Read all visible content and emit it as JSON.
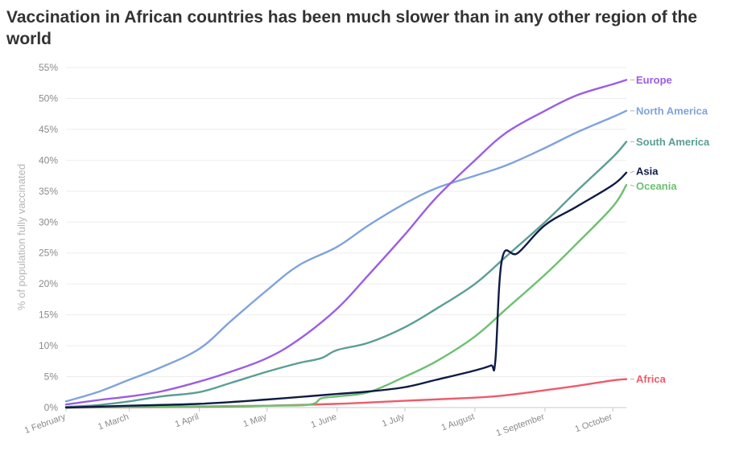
{
  "title": "Vaccination in African countries has been much slower than in any other region of the world",
  "chart_data": {
    "type": "line",
    "title": "Vaccination in African countries has been much slower than in any other region of the world",
    "xlabel": "",
    "ylabel": "% of population fully vaccinated",
    "x_axis": {
      "start": "2021-02-01",
      "end": "2021-10-07",
      "ticks": [
        {
          "date": "2021-02-01",
          "label": "1 February"
        },
        {
          "date": "2021-03-01",
          "label": "1 March"
        },
        {
          "date": "2021-04-01",
          "label": "1 April"
        },
        {
          "date": "2021-05-01",
          "label": "1 May"
        },
        {
          "date": "2021-06-01",
          "label": "1 June"
        },
        {
          "date": "2021-07-01",
          "label": "1 July"
        },
        {
          "date": "2021-08-01",
          "label": "1 August"
        },
        {
          "date": "2021-09-01",
          "label": "1 September"
        },
        {
          "date": "2021-10-01",
          "label": "1 October"
        }
      ]
    },
    "y_axis": {
      "min": 0,
      "max": 55,
      "ticks": [
        0,
        5,
        10,
        15,
        20,
        25,
        30,
        35,
        40,
        45,
        50,
        55
      ],
      "tick_labels": [
        "0%",
        "5%",
        "10%",
        "15%",
        "20%",
        "25%",
        "30%",
        "35%",
        "40%",
        "45%",
        "50%",
        "55%"
      ]
    },
    "grid": true,
    "series": [
      {
        "name": "Europe",
        "color": "#9b5de5",
        "points": [
          [
            "2021-02-01",
            0.5
          ],
          [
            "2021-02-15",
            1.2
          ],
          [
            "2021-03-01",
            1.8
          ],
          [
            "2021-03-15",
            2.6
          ],
          [
            "2021-04-01",
            4.2
          ],
          [
            "2021-04-15",
            5.8
          ],
          [
            "2021-05-01",
            8.0
          ],
          [
            "2021-05-15",
            11.0
          ],
          [
            "2021-06-01",
            16.0
          ],
          [
            "2021-06-15",
            21.5
          ],
          [
            "2021-07-01",
            28.0
          ],
          [
            "2021-07-15",
            34.0
          ],
          [
            "2021-08-01",
            40.0
          ],
          [
            "2021-08-15",
            44.5
          ],
          [
            "2021-09-01",
            48.0
          ],
          [
            "2021-09-15",
            50.5
          ],
          [
            "2021-10-01",
            52.3
          ],
          [
            "2021-10-07",
            53.0
          ]
        ]
      },
      {
        "name": "North America",
        "color": "#7fa3dd",
        "points": [
          [
            "2021-02-01",
            1.0
          ],
          [
            "2021-02-15",
            2.5
          ],
          [
            "2021-03-01",
            4.5
          ],
          [
            "2021-03-15",
            6.5
          ],
          [
            "2021-04-01",
            9.5
          ],
          [
            "2021-04-15",
            14.0
          ],
          [
            "2021-05-01",
            19.0
          ],
          [
            "2021-05-15",
            23.0
          ],
          [
            "2021-06-01",
            26.0
          ],
          [
            "2021-06-15",
            29.5
          ],
          [
            "2021-07-01",
            33.0
          ],
          [
            "2021-07-15",
            35.5
          ],
          [
            "2021-08-01",
            37.5
          ],
          [
            "2021-08-15",
            39.2
          ],
          [
            "2021-09-01",
            42.0
          ],
          [
            "2021-09-15",
            44.5
          ],
          [
            "2021-10-01",
            47.0
          ],
          [
            "2021-10-07",
            48.0
          ]
        ]
      },
      {
        "name": "South America",
        "color": "#5a9e94",
        "points": [
          [
            "2021-02-01",
            0.1
          ],
          [
            "2021-02-15",
            0.4
          ],
          [
            "2021-03-01",
            1.0
          ],
          [
            "2021-03-15",
            1.8
          ],
          [
            "2021-04-01",
            2.5
          ],
          [
            "2021-04-15",
            4.0
          ],
          [
            "2021-05-01",
            5.8
          ],
          [
            "2021-05-15",
            7.2
          ],
          [
            "2021-05-25",
            8.0
          ],
          [
            "2021-06-01",
            9.3
          ],
          [
            "2021-06-15",
            10.5
          ],
          [
            "2021-07-01",
            13.0
          ],
          [
            "2021-07-15",
            16.0
          ],
          [
            "2021-08-01",
            20.0
          ],
          [
            "2021-08-15",
            24.5
          ],
          [
            "2021-09-01",
            30.0
          ],
          [
            "2021-09-15",
            35.0
          ],
          [
            "2021-10-01",
            40.5
          ],
          [
            "2021-10-07",
            43.0
          ]
        ]
      },
      {
        "name": "Asia",
        "color": "#0f1b44",
        "points": [
          [
            "2021-02-01",
            0.0
          ],
          [
            "2021-03-01",
            0.3
          ],
          [
            "2021-04-01",
            0.6
          ],
          [
            "2021-05-01",
            1.3
          ],
          [
            "2021-06-01",
            2.2
          ],
          [
            "2021-06-15",
            2.6
          ],
          [
            "2021-07-01",
            3.3
          ],
          [
            "2021-07-15",
            4.5
          ],
          [
            "2021-08-01",
            6.0
          ],
          [
            "2021-08-08",
            6.8
          ],
          [
            "2021-08-10",
            7.5
          ],
          [
            "2021-08-13",
            24.0
          ],
          [
            "2021-08-20",
            25.0
          ],
          [
            "2021-09-01",
            29.5
          ],
          [
            "2021-09-15",
            32.5
          ],
          [
            "2021-10-01",
            36.0
          ],
          [
            "2021-10-07",
            38.0
          ]
        ]
      },
      {
        "name": "Oceania",
        "color": "#6cc070",
        "points": [
          [
            "2021-02-01",
            0.0
          ],
          [
            "2021-05-01",
            0.3
          ],
          [
            "2021-05-20",
            0.5
          ],
          [
            "2021-05-25",
            1.5
          ],
          [
            "2021-06-01",
            1.8
          ],
          [
            "2021-06-15",
            2.5
          ],
          [
            "2021-07-01",
            5.0
          ],
          [
            "2021-07-15",
            7.5
          ],
          [
            "2021-08-01",
            11.5
          ],
          [
            "2021-08-15",
            16.0
          ],
          [
            "2021-09-01",
            21.5
          ],
          [
            "2021-09-15",
            26.5
          ],
          [
            "2021-10-01",
            32.5
          ],
          [
            "2021-10-07",
            36.0
          ]
        ]
      },
      {
        "name": "Africa",
        "color": "#f05a6a",
        "points": [
          [
            "2021-02-01",
            0.0
          ],
          [
            "2021-04-01",
            0.1
          ],
          [
            "2021-05-01",
            0.3
          ],
          [
            "2021-06-01",
            0.6
          ],
          [
            "2021-07-01",
            1.1
          ],
          [
            "2021-08-01",
            1.6
          ],
          [
            "2021-08-15",
            2.0
          ],
          [
            "2021-09-01",
            2.8
          ],
          [
            "2021-09-15",
            3.5
          ],
          [
            "2021-10-01",
            4.4
          ],
          [
            "2021-10-07",
            4.6
          ]
        ]
      }
    ],
    "end_labels": [
      {
        "series": "Europe",
        "text": "Europe",
        "label_y": 53.0
      },
      {
        "series": "North America",
        "text": "North America",
        "label_y": 48.0
      },
      {
        "series": "South America",
        "text": "South America",
        "label_y": 43.0
      },
      {
        "series": "Asia",
        "text": "Asia",
        "label_y": 38.2
      },
      {
        "series": "Oceania",
        "text": "Oceania",
        "label_y": 35.8
      },
      {
        "series": "Africa",
        "text": "Africa",
        "label_y": 4.6
      }
    ]
  }
}
